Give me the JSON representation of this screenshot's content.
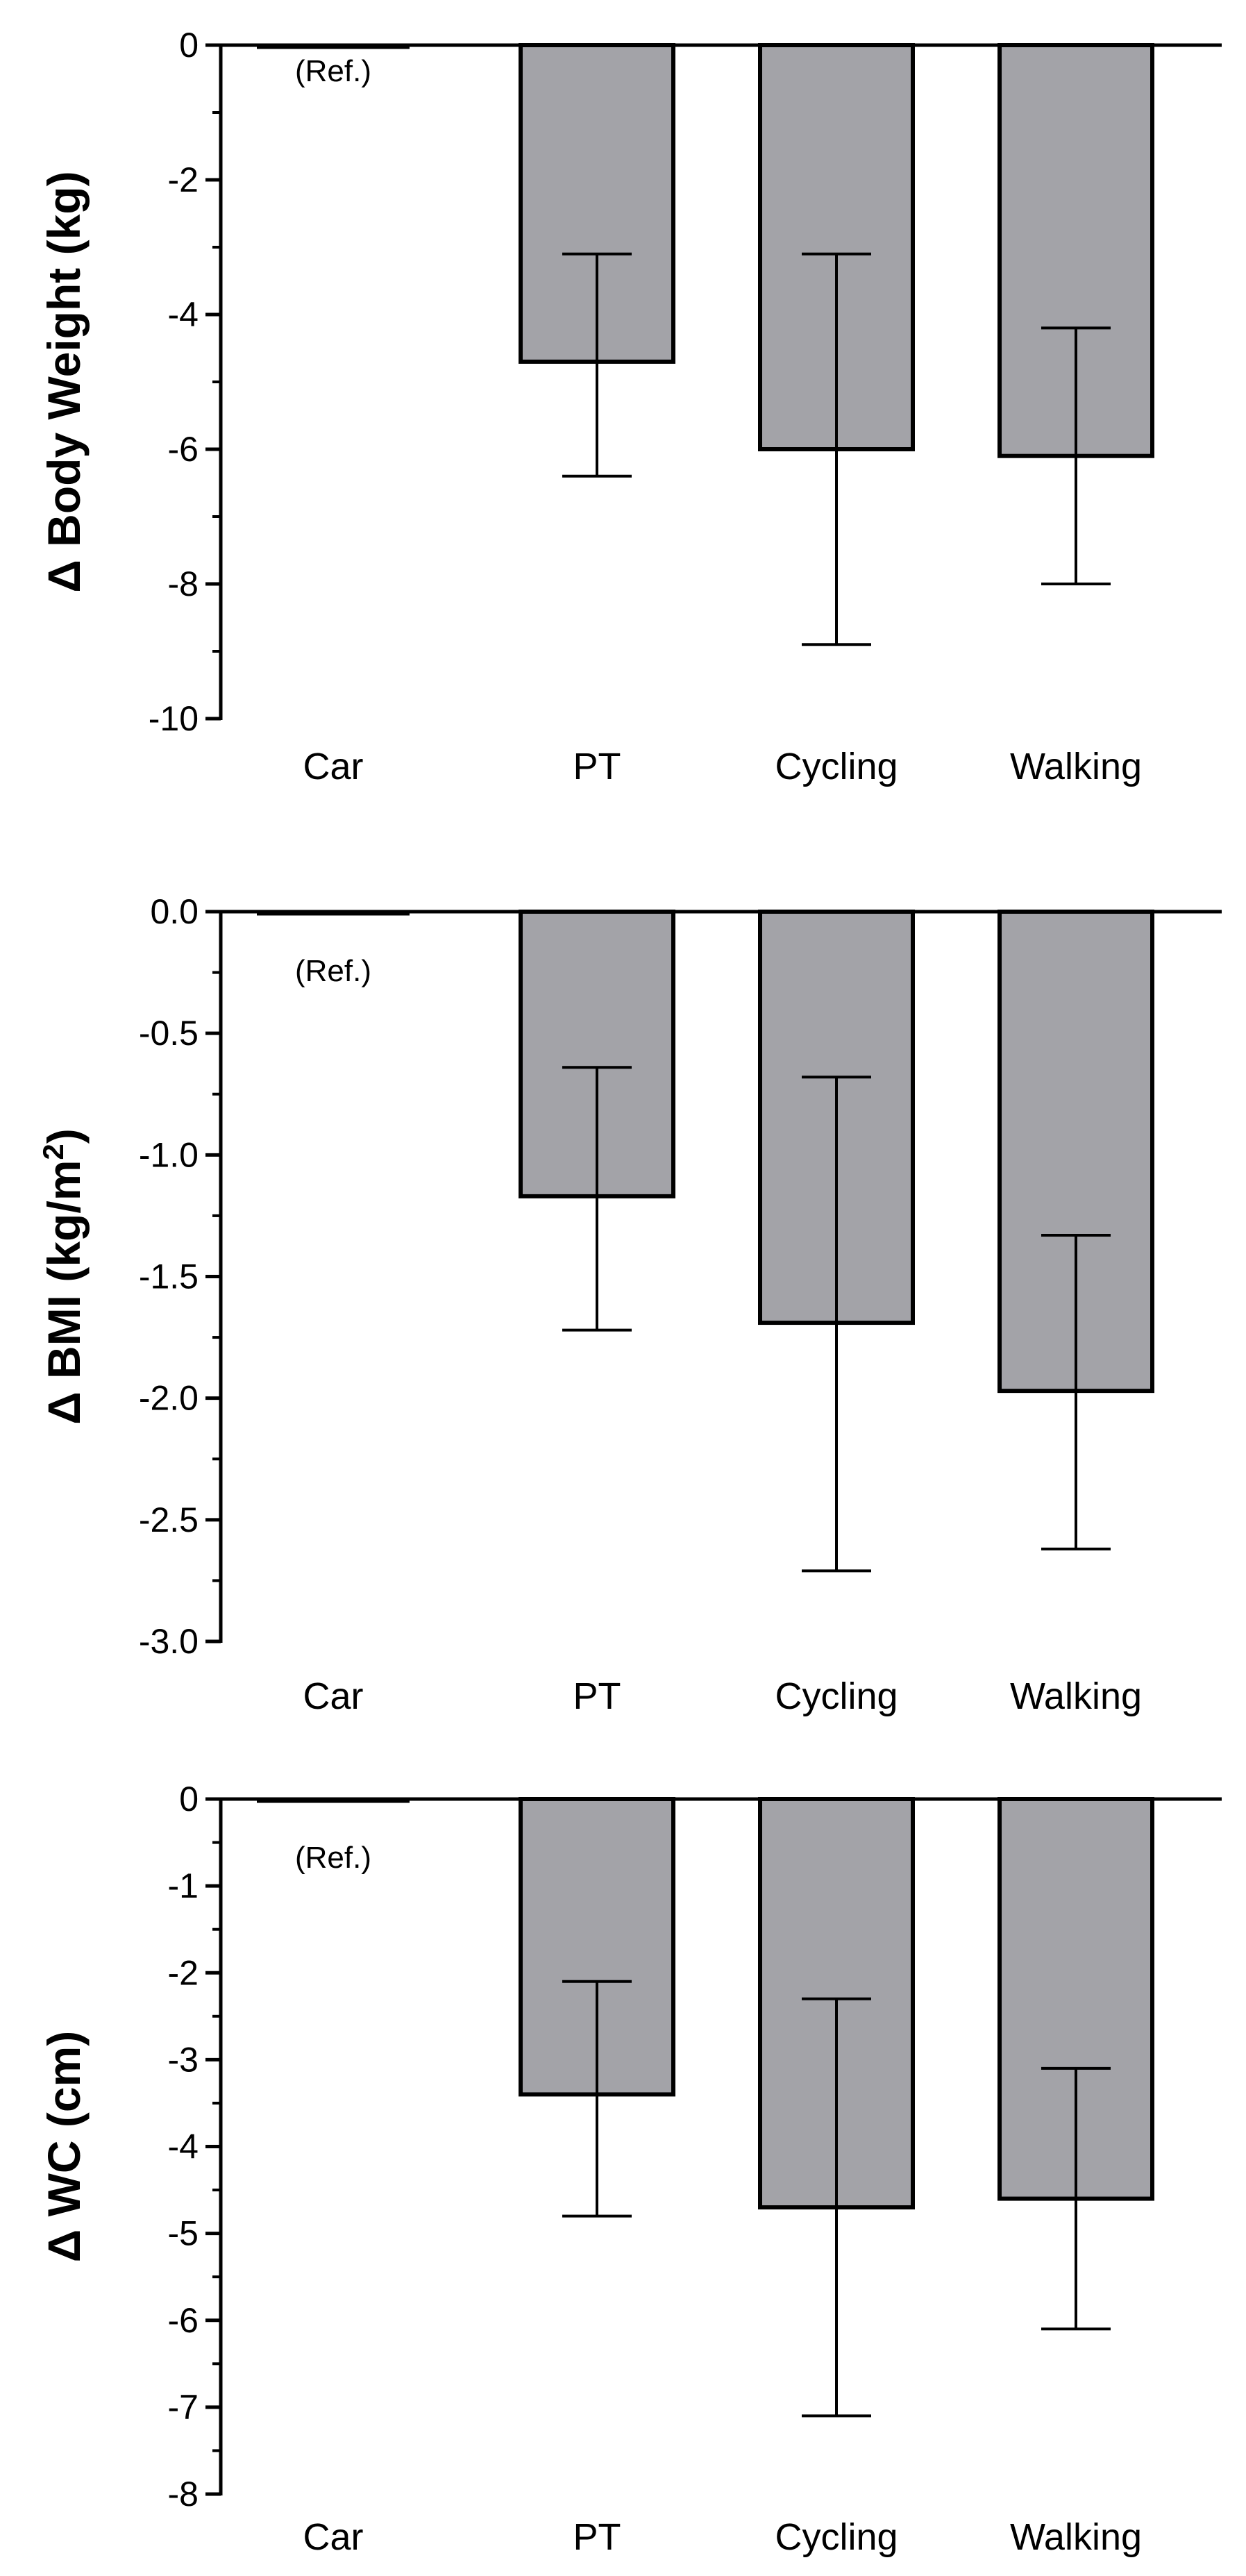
{
  "colors": {
    "bar_fill": "#a3a3a8",
    "bar_stroke": "#000000",
    "axis": "#000000",
    "background": "#ffffff"
  },
  "chart_data": [
    {
      "type": "bar",
      "title": "",
      "ylabel_parts": {
        "prefix": "Δ ",
        "main": "Body Weight (kg)",
        "sup": "",
        "suffix": ""
      },
      "xlabel": "",
      "categories": [
        "Car",
        "PT",
        "Cycling",
        "Walking"
      ],
      "values": [
        0,
        -4.7,
        -6.0,
        -6.1
      ],
      "error_low": [
        0,
        -6.4,
        -8.9,
        -8.0
      ],
      "error_high": [
        0,
        -3.1,
        -3.1,
        -4.2
      ],
      "ylim": [
        -10,
        0
      ],
      "yticks": [
        0,
        -2,
        -4,
        -6,
        -8,
        -10
      ],
      "ytick_labels": [
        "0",
        "-2",
        "-4",
        "-6",
        "-8",
        "-10"
      ],
      "minor_step": 1,
      "reference": {
        "category": "Car",
        "label": "(Ref.)"
      },
      "grid": false,
      "legend": "none"
    },
    {
      "type": "bar",
      "title": "",
      "ylabel_parts": {
        "prefix": "Δ ",
        "main": "BMI (kg/m",
        "sup": "2",
        "suffix": ")"
      },
      "xlabel": "",
      "categories": [
        "Car",
        "PT",
        "Cycling",
        "Walking"
      ],
      "values": [
        0,
        -1.17,
        -1.69,
        -1.97
      ],
      "error_low": [
        0,
        -1.72,
        -2.71,
        -2.62
      ],
      "error_high": [
        0,
        -0.64,
        -0.68,
        -1.33
      ],
      "ylim": [
        -3.0,
        0.0
      ],
      "yticks": [
        0.0,
        -0.5,
        -1.0,
        -1.5,
        -2.0,
        -2.5,
        -3.0
      ],
      "ytick_labels": [
        "0.0",
        "-0.5",
        "-1.0",
        "-1.5",
        "-2.0",
        "-2.5",
        "-3.0"
      ],
      "minor_step": 0.25,
      "reference": {
        "category": "Car",
        "label": "(Ref.)"
      },
      "grid": false,
      "legend": "none"
    },
    {
      "type": "bar",
      "title": "",
      "ylabel_parts": {
        "prefix": "Δ ",
        "main": "WC (cm)",
        "sup": "",
        "suffix": ""
      },
      "xlabel": "",
      "categories": [
        "Car",
        "PT",
        "Cycling",
        "Walking"
      ],
      "values": [
        0,
        -3.4,
        -4.7,
        -4.6
      ],
      "error_low": [
        0,
        -4.8,
        -7.1,
        -6.1
      ],
      "error_high": [
        0,
        -2.1,
        -2.3,
        -3.1
      ],
      "ylim": [
        -8,
        0
      ],
      "yticks": [
        0,
        -1,
        -2,
        -3,
        -4,
        -5,
        -6,
        -7,
        -8
      ],
      "ytick_labels": [
        "0",
        "-1",
        "-2",
        "-3",
        "-4",
        "-5",
        "-6",
        "-7",
        "-8"
      ],
      "minor_step": 0.5,
      "reference": {
        "category": "Car",
        "label": "(Ref.)"
      },
      "grid": false,
      "legend": "none"
    }
  ]
}
